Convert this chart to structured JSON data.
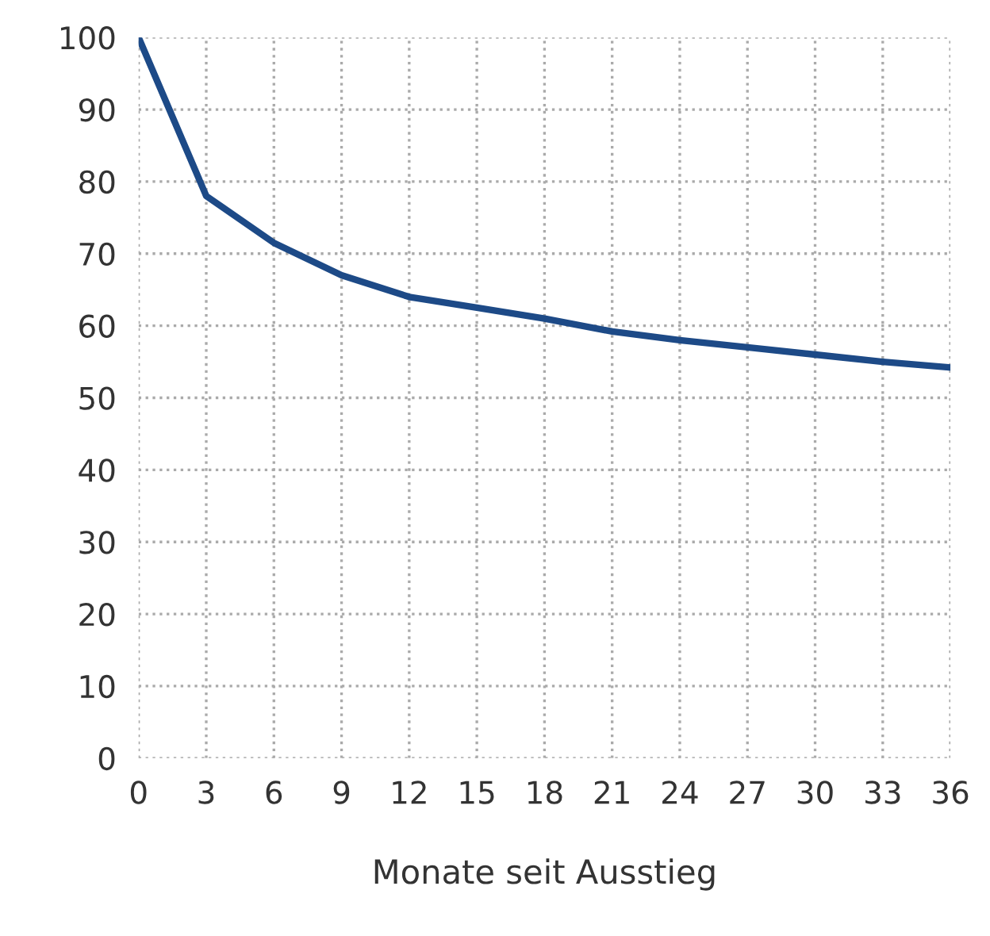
{
  "chart_data": {
    "type": "line",
    "xlabel": "Monate seit Ausstieg",
    "x": [
      0,
      3,
      6,
      9,
      12,
      15,
      18,
      21,
      24,
      27,
      30,
      33,
      36
    ],
    "series": [
      {
        "color": "#1d4a87",
        "values": [
          100,
          78,
          71.5,
          67,
          64,
          62.5,
          61,
          59.2,
          58,
          57,
          56,
          55,
          54.2
        ]
      }
    ],
    "xlim": [
      0,
      36
    ],
    "xticks": [
      0,
      3,
      6,
      9,
      12,
      15,
      18,
      21,
      24,
      27,
      30,
      33,
      36
    ],
    "ylim": [
      0,
      100
    ],
    "yticks": [
      0,
      10,
      20,
      30,
      40,
      50,
      60,
      70,
      80,
      90,
      100
    ],
    "grid": true,
    "marker": "none",
    "line_style": "solid"
  }
}
